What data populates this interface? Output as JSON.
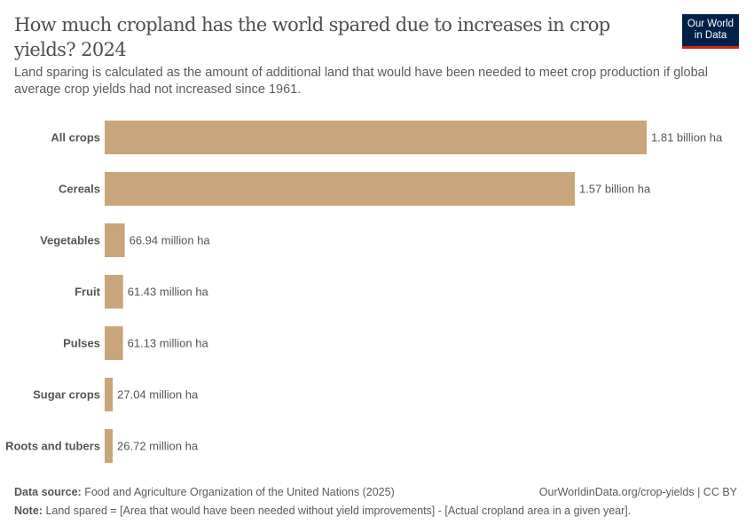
{
  "title": "How much cropland has the world spared due to increases in crop yields? 2024",
  "subtitle": "Land sparing is calculated as the amount of additional land that would have been needed to meet crop production if global average crop yields had not increased since 1961.",
  "logo": "Our World in Data",
  "colors": {
    "bar": "#c8a57a"
  },
  "chart_data": {
    "type": "bar",
    "orientation": "horizontal",
    "unit": "million ha",
    "categories": [
      "All crops",
      "Cereals",
      "Vegetables",
      "Fruit",
      "Pulses",
      "Sugar crops",
      "Roots and tubers"
    ],
    "values": [
      1810,
      1570,
      66.94,
      61.43,
      61.13,
      27.04,
      26.72
    ],
    "labels": [
      "1.81 billion ha",
      "1.57 billion ha",
      "66.94 million ha",
      "61.43 million ha",
      "61.13 million ha",
      "27.04 million ha",
      "26.72 million ha"
    ],
    "grid": false
  },
  "footer": {
    "source_label": "Data source:",
    "source": "Food and Agriculture Organization of the United Nations (2025)",
    "url": "OurWorldinData.org/crop-yields | CC BY",
    "note_label": "Note:",
    "note": "Land spared = [Area that would have been needed without yield improvements] - [Actual cropland area in a given year]."
  }
}
